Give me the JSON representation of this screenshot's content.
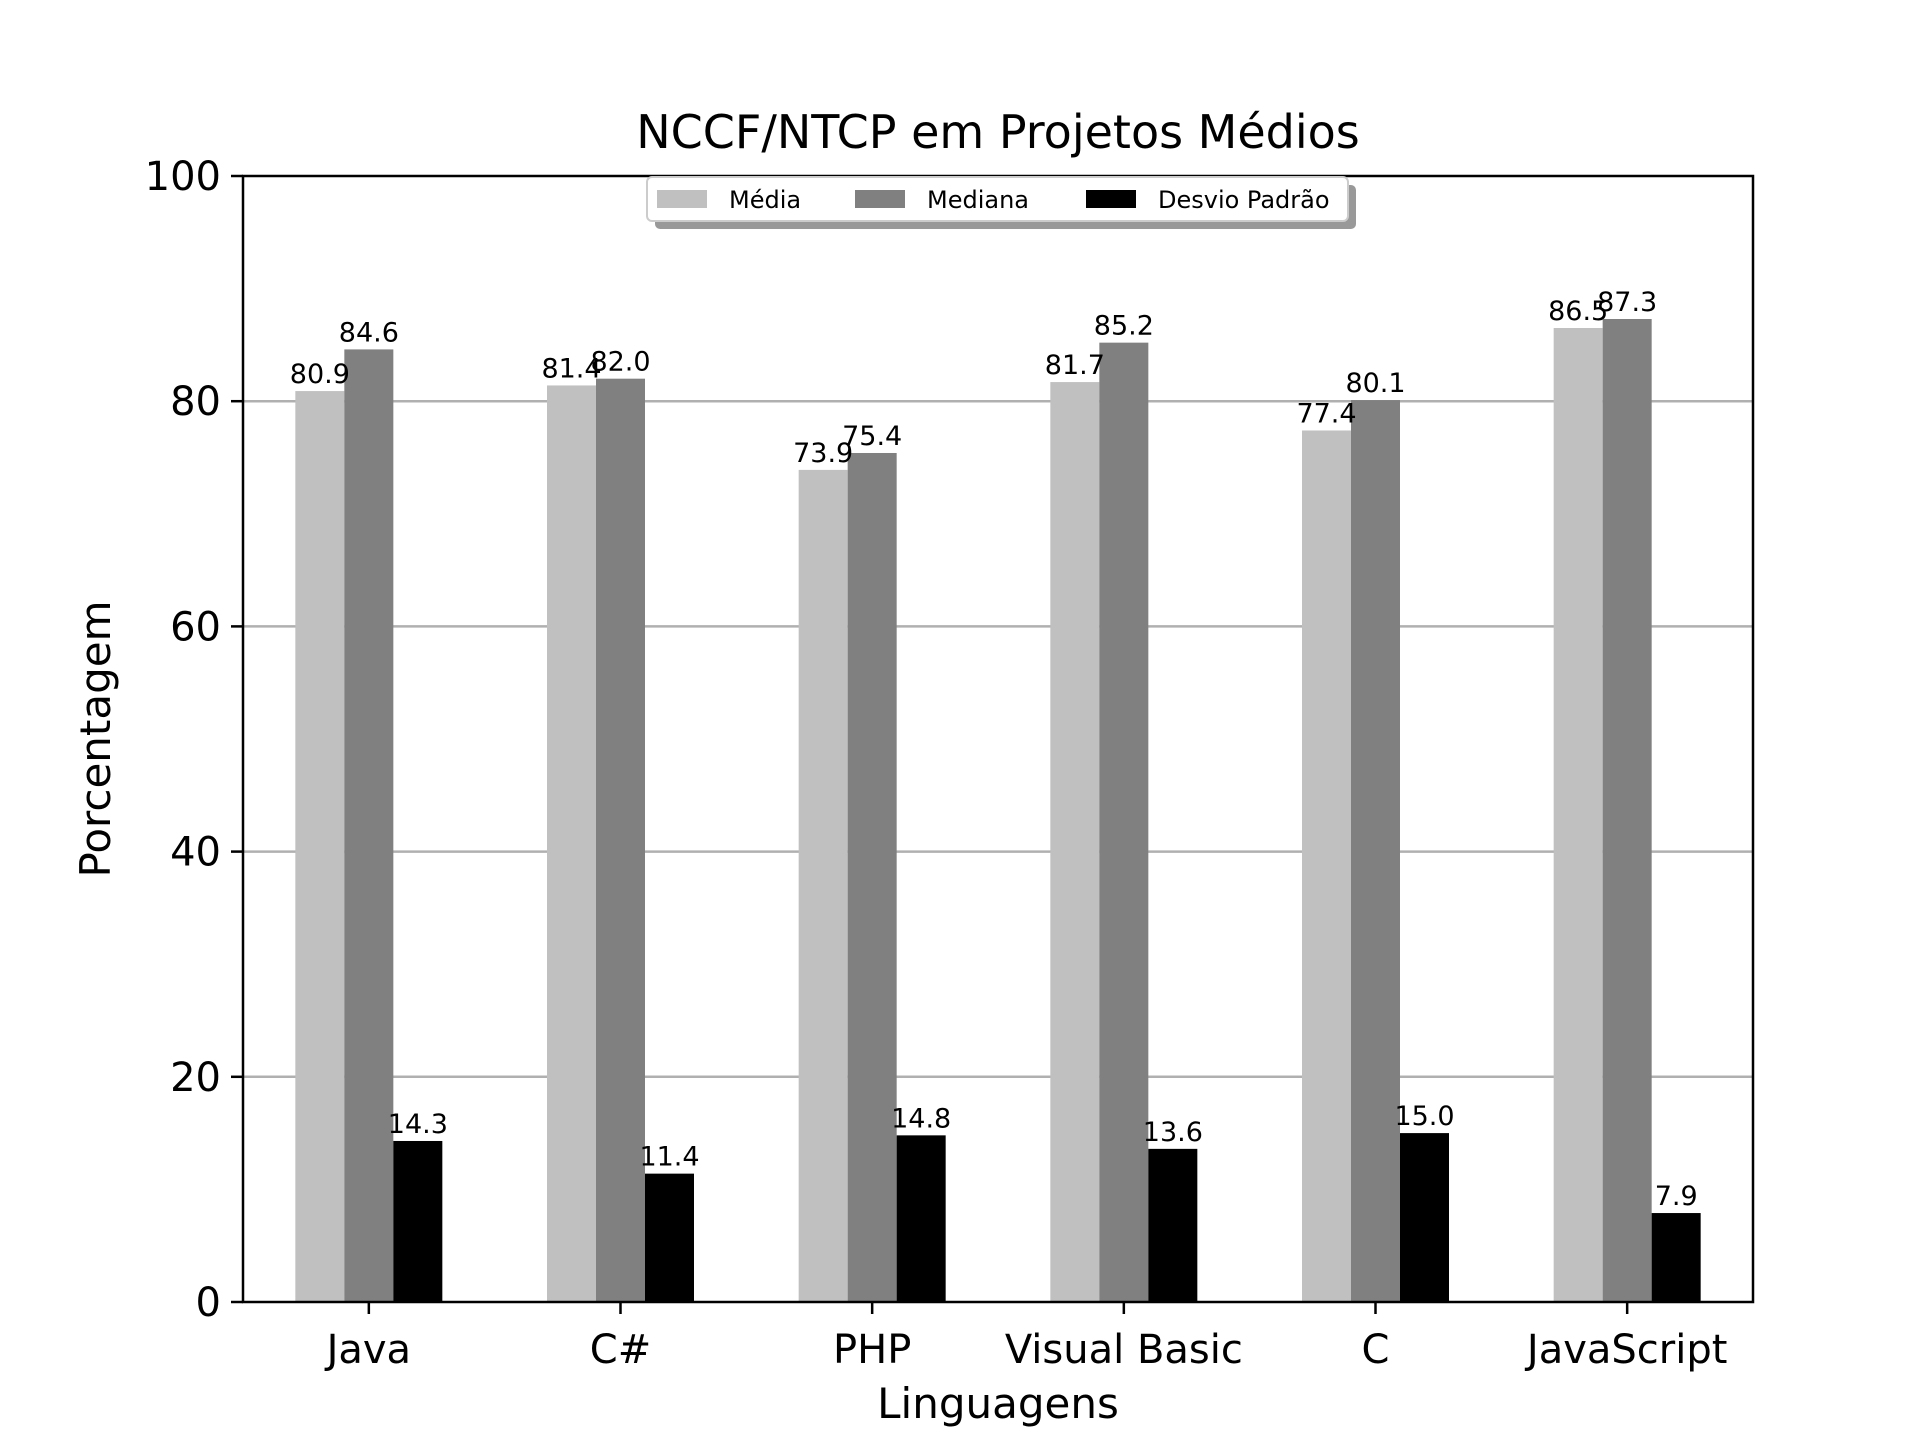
{
  "chart_data": {
    "type": "bar",
    "title": "NCCF/NTCP em Projetos Médios",
    "xlabel": "Linguagens",
    "ylabel": "Porcentagem",
    "ylim": [
      0,
      100
    ],
    "yticks": [
      0,
      20,
      40,
      60,
      80,
      100
    ],
    "grid": "y",
    "legend_position": "top-center",
    "categories": [
      "Java",
      "C#",
      "PHP",
      "Visual Basic",
      "C",
      "JavaScript"
    ],
    "series": [
      {
        "name": "Média",
        "color": "#c0c0c0",
        "values": [
          80.9,
          81.4,
          73.9,
          81.7,
          77.4,
          86.5
        ]
      },
      {
        "name": "Mediana",
        "color": "#808080",
        "values": [
          84.6,
          82.0,
          75.4,
          85.2,
          80.1,
          87.3
        ]
      },
      {
        "name": "Desvio Padrão",
        "color": "#000000",
        "values": [
          14.3,
          11.4,
          14.8,
          13.6,
          15.0,
          7.9
        ]
      }
    ]
  }
}
